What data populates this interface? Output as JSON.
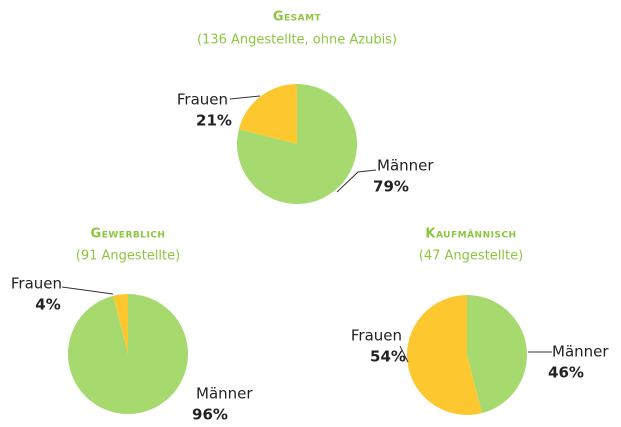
{
  "chart_data": [
    {
      "type": "pie",
      "title": "Gesamt",
      "subtitle": "(136 Angestellte, ohne Azubis)",
      "categories": [
        "Frauen",
        "Männer"
      ],
      "values": [
        21,
        79
      ],
      "value_labels": [
        "21%",
        "79%"
      ],
      "colors": [
        "#fdc82f",
        "#a6da6e"
      ]
    },
    {
      "type": "pie",
      "title": "Gewerblich",
      "subtitle": "(91 Angestellte)",
      "categories": [
        "Frauen",
        "Männer"
      ],
      "values": [
        4,
        96
      ],
      "value_labels": [
        "4%",
        "96%"
      ],
      "colors": [
        "#fdc82f",
        "#a6da6e"
      ]
    },
    {
      "type": "pie",
      "title": "Kaufmännisch",
      "subtitle": "(47 Angestellte)",
      "categories": [
        "Frauen",
        "Männer"
      ],
      "values": [
        54,
        46
      ],
      "value_labels": [
        "54%",
        "46%"
      ],
      "colors": [
        "#fdc82f",
        "#a6da6e"
      ]
    }
  ]
}
